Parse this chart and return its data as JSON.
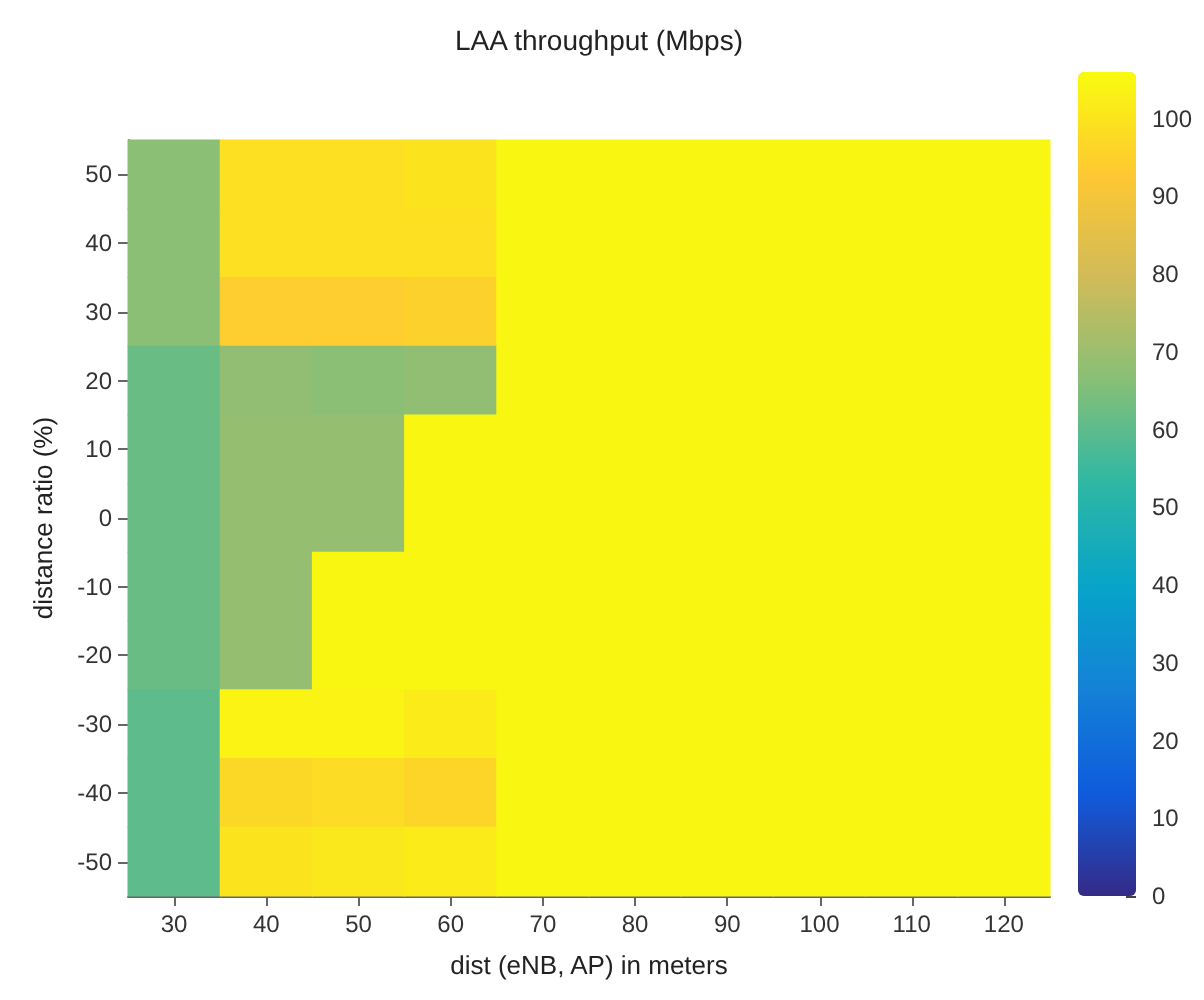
{
  "chart_data": {
    "type": "heatmap",
    "title": "LAA throughput (Mbps)",
    "xlabel": "dist (eNB, AP) in meters",
    "ylabel": "distance ratio (%)",
    "categories": [
      "30",
      "40",
      "50",
      "60",
      "70",
      "80",
      "90",
      "100",
      "110",
      "120"
    ],
    "y_categories": [
      "50",
      "40",
      "30",
      "20",
      "10",
      "0",
      "-10",
      "-20",
      "-30",
      "-40",
      "-50"
    ],
    "cells": [
      [
        67,
        99,
        99,
        100,
        105,
        105,
        105,
        105,
        105,
        105
      ],
      [
        67,
        99,
        99,
        99,
        105,
        105,
        105,
        105,
        105,
        105
      ],
      [
        67,
        94,
        94,
        95,
        105,
        105,
        105,
        105,
        105,
        105
      ],
      [
        62,
        68,
        67,
        68,
        105,
        105,
        105,
        105,
        105,
        105
      ],
      [
        62,
        69,
        69,
        105,
        105,
        105,
        105,
        105,
        105,
        105
      ],
      [
        62,
        69,
        69,
        105,
        105,
        105,
        105,
        105,
        105,
        105
      ],
      [
        62,
        69,
        105,
        105,
        105,
        105,
        105,
        105,
        105,
        105
      ],
      [
        62,
        69,
        105,
        105,
        105,
        105,
        105,
        105,
        105,
        105
      ],
      [
        60,
        104,
        104,
        102,
        105,
        105,
        105,
        105,
        105,
        105
      ],
      [
        60,
        97,
        98,
        96,
        105,
        105,
        105,
        105,
        105,
        105
      ],
      [
        60,
        100,
        101,
        102,
        105,
        105,
        105,
        105,
        105,
        105
      ]
    ],
    "clim": [
      0,
      106
    ],
    "cticks": [
      0,
      10,
      20,
      30,
      40,
      50,
      60,
      70,
      80,
      90,
      100
    ]
  }
}
